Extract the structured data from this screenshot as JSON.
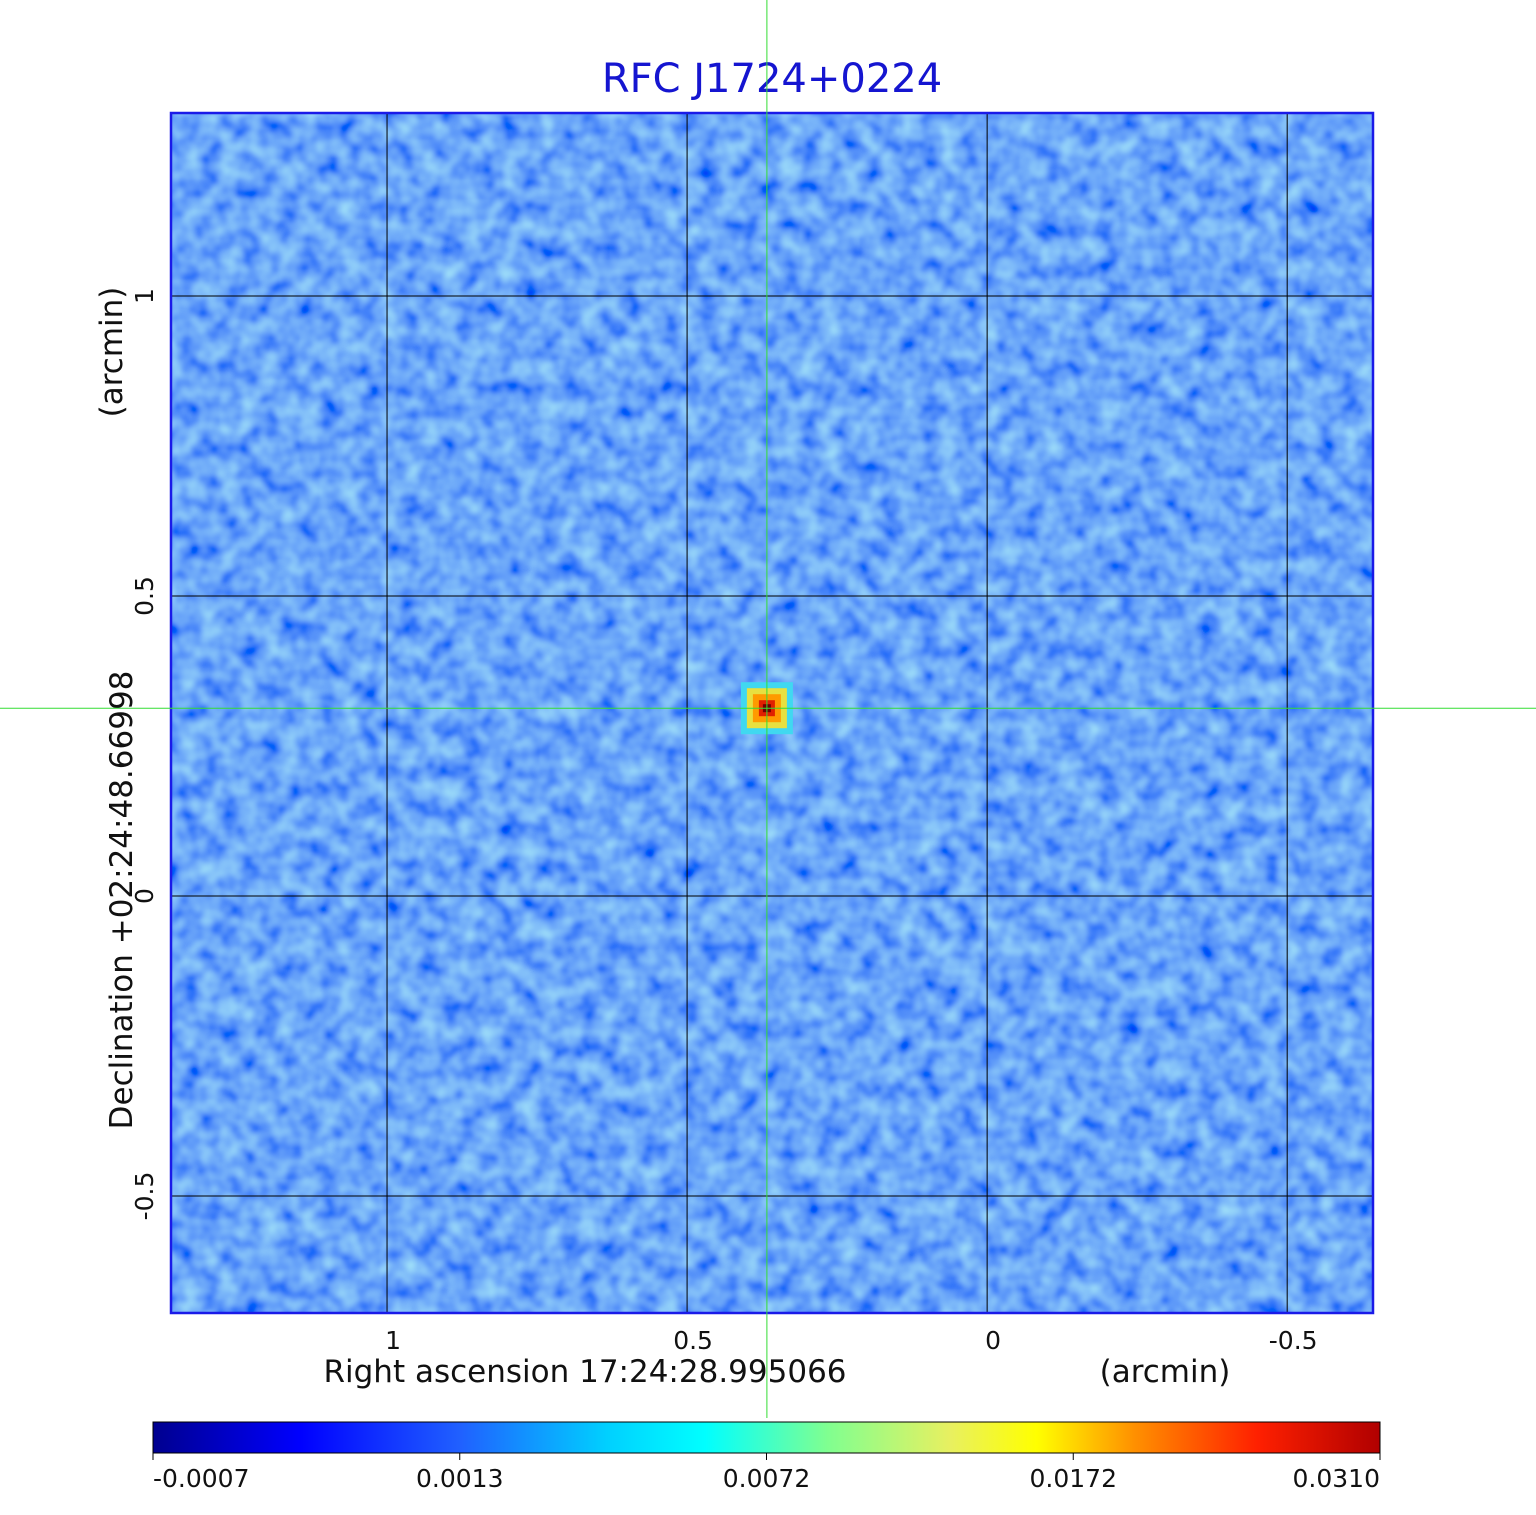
{
  "chart_data": {
    "type": "image",
    "title": "RFC J1724+0224",
    "xlabel": "Right ascension  17:24:28.995066",
    "xunit": "(arcmin)",
    "ylabel": "Declination  +02:24:48.66998",
    "yunit": "(arcmin)",
    "xlim": [
      1.36,
      -0.643
    ],
    "ylim": [
      -0.695,
      1.305
    ],
    "xticks": [
      1.0,
      0.5,
      0.0,
      -0.5
    ],
    "yticks": [
      -0.5,
      0.0,
      0.5,
      1.0
    ],
    "grid": true,
    "marker": {
      "x": 0.367,
      "y": 0.313,
      "color": "#33dd33"
    },
    "source": {
      "x": 0.367,
      "y": 0.313,
      "value": 0.031
    },
    "colorbar": {
      "colormap": "jet",
      "ticks": [
        -0.0007,
        0.0013,
        0.0072,
        0.0172,
        {
          "value": 0.031,
          "label": "0.0310"
        }
      ]
    }
  }
}
